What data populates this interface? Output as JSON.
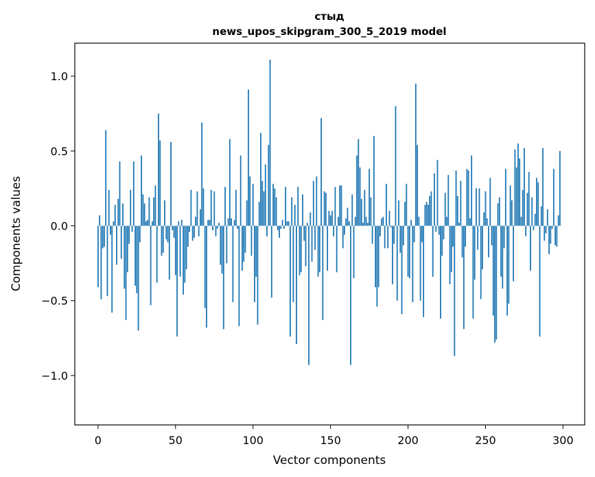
{
  "chart_data": {
    "type": "bar",
    "title_lines": [
      "стыд",
      "news_upos_skipgram_300_5_2019 model"
    ],
    "xlabel": "Vector components",
    "ylabel": "Components values",
    "xlim": [
      -15,
      314
    ],
    "ylim": [
      -1.33,
      1.22
    ],
    "x_ticks": [
      0,
      50,
      100,
      150,
      200,
      250,
      300
    ],
    "x_tick_labels": [
      "0",
      "50",
      "100",
      "150",
      "200",
      "250",
      "300"
    ],
    "y_ticks": [
      -1.0,
      -0.5,
      0.0,
      0.5,
      1.0
    ],
    "y_tick_labels": [
      "−1.0",
      "−0.5",
      "0.0",
      "0.5",
      "1.0"
    ],
    "bar_color": "#1f77b4",
    "values": [
      -0.41,
      0.07,
      -0.49,
      -0.15,
      -0.14,
      0.64,
      -0.47,
      0.24,
      -0.06,
      -0.58,
      0.03,
      0.14,
      -0.26,
      0.18,
      0.43,
      -0.22,
      0.15,
      -0.42,
      -0.63,
      -0.31,
      -0.12,
      0.24,
      -0.04,
      0.43,
      -0.4,
      -0.45,
      -0.7,
      -0.11,
      0.47,
      0.21,
      0.15,
      0.03,
      0.04,
      0.19,
      -0.53,
      0.03,
      0.19,
      0.27,
      -0.38,
      0.75,
      0.57,
      -0.2,
      -0.18,
      0.17,
      -0.09,
      -0.11,
      -0.36,
      0.56,
      -0.03,
      -0.08,
      -0.33,
      -0.74,
      0.03,
      -0.34,
      0.04,
      -0.46,
      -0.38,
      -0.29,
      -0.14,
      -0.04,
      0.24,
      -0.1,
      -0.08,
      0.06,
      0.23,
      -0.07,
      0.11,
      0.69,
      0.25,
      -0.55,
      -0.68,
      0.04,
      0.04,
      0.24,
      -0.03,
      0.23,
      -0.07,
      -0.02,
      0.02,
      -0.26,
      -0.32,
      -0.69,
      0.26,
      -0.25,
      0.05,
      0.58,
      0.05,
      -0.51,
      0.04,
      0.24,
      -0.02,
      -0.67,
      0.47,
      -0.3,
      -0.24,
      -0.18,
      0.17,
      0.91,
      0.33,
      -0.2,
      0.28,
      -0.51,
      -0.34,
      -0.66,
      0.16,
      0.62,
      0.3,
      0.23,
      0.41,
      -0.07,
      0.54,
      1.11,
      -0.48,
      0.28,
      0.25,
      0.19,
      -0.03,
      -0.08,
      -0.02,
      0.04,
      -0.02,
      0.26,
      0.03,
      0.03,
      -0.74,
      0.19,
      -0.51,
      0.14,
      -0.79,
      0.26,
      -0.33,
      -0.31,
      0.21,
      -0.1,
      -0.27,
      0.02,
      -0.93,
      0.09,
      -0.24,
      0.3,
      -0.16,
      0.33,
      -0.34,
      -0.31,
      0.72,
      -0.63,
      0.23,
      0.22,
      -0.3,
      0.1,
      0.07,
      0.1,
      -0.07,
      0.26,
      -0.31,
      0.06,
      0.27,
      0.27,
      -0.15,
      -0.06,
      0.05,
      0.12,
      0.03,
      -0.93,
      0.21,
      -0.35,
      0.06,
      0.47,
      0.58,
      0.39,
      0.18,
      0.02,
      0.24,
      0.06,
      0.02,
      0.38,
      0.19,
      -0.12,
      0.6,
      -0.41,
      -0.54,
      -0.41,
      -0.07,
      0.05,
      0.06,
      -0.15,
      0.28,
      -0.15,
      0.1,
      -0.01,
      -0.39,
      -0.12,
      0.8,
      -0.5,
      0.17,
      -0.18,
      -0.59,
      -0.13,
      0.16,
      0.28,
      -0.34,
      -0.35,
      0.04,
      -0.51,
      -0.11,
      0.95,
      0.54,
      0.06,
      -0.5,
      -0.11,
      -0.61,
      0.14,
      0.16,
      0.14,
      0.2,
      0.23,
      -0.34,
      0.35,
      -0.04,
      0.44,
      -0.06,
      -0.62,
      -0.2,
      -0.09,
      0.22,
      0.06,
      0.34,
      -0.39,
      -0.31,
      -0.14,
      -0.87,
      0.37,
      0.2,
      0.02,
      0.3,
      -0.21,
      -0.69,
      -0.14,
      0.38,
      0.37,
      0.05,
      0.47,
      -0.62,
      -0.36,
      0.25,
      -0.16,
      0.25,
      -0.49,
      -0.29,
      0.09,
      0.23,
      0.05,
      -0.21,
      0.32,
      -0.13,
      -0.6,
      -0.78,
      -0.76,
      0.15,
      0.19,
      -0.34,
      -0.42,
      -0.15,
      0.38,
      -0.6,
      -0.52,
      0.27,
      0.17,
      -0.37,
      0.51,
      0.39,
      0.55,
      0.45,
      0.06,
      0.24,
      0.52,
      -0.07,
      0.22,
      0.36,
      -0.3,
      0.19,
      -0.03,
      0.08,
      0.32,
      0.29,
      -0.74,
      0.13,
      0.52,
      -0.1,
      -0.05,
      0.11,
      -0.19,
      -0.12,
      -0.02,
      0.38,
      -0.13,
      -0.14,
      0.07,
      0.5
    ]
  }
}
